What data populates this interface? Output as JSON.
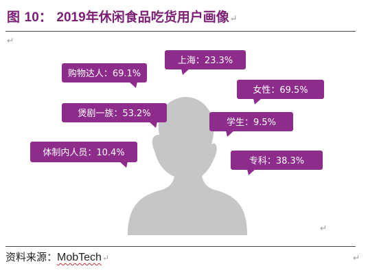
{
  "figure": {
    "title_prefix": "图",
    "title_number": "10",
    "title_colon": "：",
    "title_year": "2019",
    "title_text": "年休闲食品吃货用户画像",
    "return_mark": "↵"
  },
  "source": {
    "label": "资料来源：",
    "name": "MobTech",
    "return_mark": "↵"
  },
  "colors": {
    "title": "#7b2074",
    "callout": "#8e2c8c",
    "silhouette": "#c6c6c6",
    "callout_text": "#ffffff"
  },
  "icons": {
    "figure": "female-silhouette-icon"
  },
  "chart_data": {
    "type": "callout",
    "title": "2019年休闲食品吃货用户画像",
    "labels": [
      {
        "category": "上海",
        "value": 23.3,
        "text": "上海：23.3%"
      },
      {
        "category": "购物达人",
        "value": 69.1,
        "text": "购物达人：69.1%"
      },
      {
        "category": "女性",
        "value": 69.5,
        "text": "女性：69.5%"
      },
      {
        "category": "煲剧一族",
        "value": 53.2,
        "text": "煲剧一族：53.2%"
      },
      {
        "category": "学生",
        "value": 9.5,
        "text": "学生：9.5%"
      },
      {
        "category": "体制内人员",
        "value": 10.4,
        "text": "体制内人员：10.4%"
      },
      {
        "category": "专科",
        "value": 38.3,
        "text": "专科：38.3%"
      }
    ]
  }
}
